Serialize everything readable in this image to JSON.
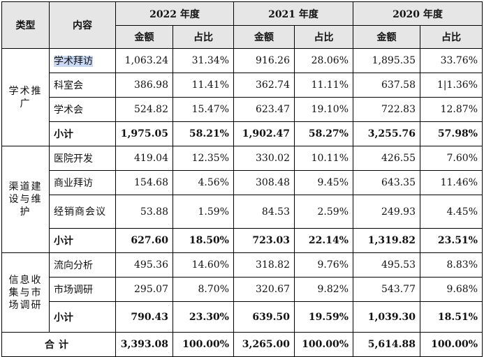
{
  "header": {
    "type": "类型",
    "content": "内容",
    "years": [
      "2022 年度",
      "2021 年度",
      "2020 年度"
    ],
    "amount": "金额",
    "ratio": "占比"
  },
  "groups": [
    {
      "category": "学术推广",
      "rows": [
        {
          "item": "学术拜访",
          "v": [
            "1,063.24",
            "31.34%",
            "916.26",
            "28.06%",
            "1,895.35",
            "33.76%"
          ]
        },
        {
          "item": "科室会",
          "v": [
            "386.98",
            "11.41%",
            "362.74",
            "11.11%",
            "637.58",
            "1|1.36%"
          ]
        },
        {
          "item": "学术会",
          "v": [
            "524.82",
            "15.47%",
            "623.47",
            "19.10%",
            "722.83",
            "12.87%"
          ]
        }
      ],
      "subtotal": {
        "label": "小计",
        "v": [
          "1,975.05",
          "58.21%",
          "1,902.47",
          "58.27%",
          "3,255.76",
          "57.98%"
        ]
      }
    },
    {
      "category": "渠道建设与维护",
      "rows": [
        {
          "item": "医院开发",
          "v": [
            "419.04",
            "12.35%",
            "330.02",
            "10.11%",
            "426.55",
            "7.60%"
          ]
        },
        {
          "item": "商业拜访",
          "v": [
            "154.68",
            "4.56%",
            "308.48",
            "9.45%",
            "643.35",
            "11.46%"
          ]
        },
        {
          "item": "经销商会议",
          "v": [
            "53.88",
            "1.59%",
            "84.53",
            "2.59%",
            "249.93",
            "4.45%"
          ]
        }
      ],
      "subtotal": {
        "label": "小计",
        "v": [
          "627.60",
          "18.50%",
          "723.03",
          "22.14%",
          "1,319.82",
          "23.51%"
        ]
      }
    },
    {
      "category": "信息收集与市场调研",
      "rows": [
        {
          "item": "流向分析",
          "v": [
            "495.36",
            "14.60%",
            "318.82",
            "9.76%",
            "495.53",
            "8.83%"
          ]
        },
        {
          "item": "市场调研",
          "v": [
            "295.07",
            "8.70%",
            "320.67",
            "9.82%",
            "543.77",
            "9.68%"
          ]
        }
      ],
      "subtotal": {
        "label": "小计",
        "v": [
          "790.43",
          "23.30%",
          "639.50",
          "19.59%",
          "1,039.30",
          "18.51%"
        ]
      }
    }
  ],
  "total": {
    "label": "合计",
    "v": [
      "3,393.08",
      "100.00%",
      "3,265.00",
      "100.00%",
      "5,614.88",
      "100.00%"
    ]
  },
  "colors": {
    "header_bg": "#e6e6e6",
    "highlight": "#c7d9f4",
    "border": "#000000"
  }
}
